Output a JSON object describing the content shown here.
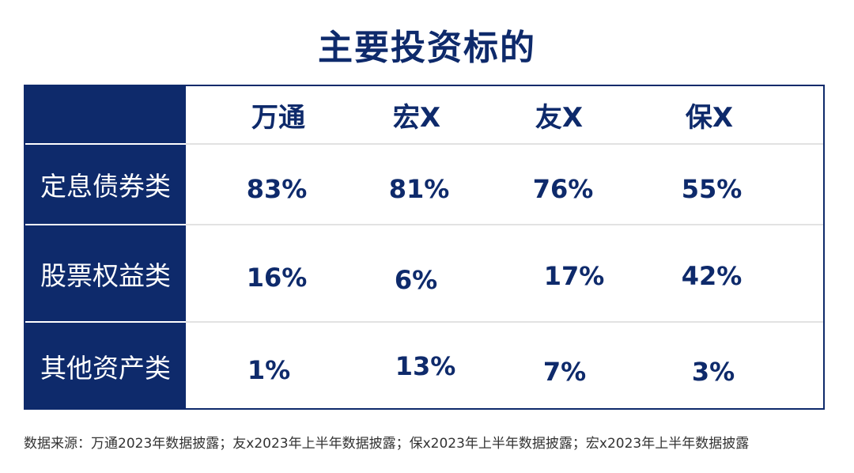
{
  "title": "主要投资标的",
  "chart_data": {
    "type": "table",
    "title": "主要投资标的",
    "columns": [
      "万通",
      "宏X",
      "友X",
      "保X"
    ],
    "rows": [
      {
        "label": "定息债券类",
        "values": [
          "83%",
          "81%",
          "76%",
          "55%"
        ]
      },
      {
        "label": "股票权益类",
        "values": [
          "16%",
          "6%",
          "17%",
          "42%"
        ]
      },
      {
        "label": "其他资产类",
        "values": [
          "1%",
          "13%",
          "7%",
          "3%"
        ]
      }
    ]
  },
  "source": "数据来源：万通2023年数据披露；友x2023年上半年数据披露；保x2023年上半年数据披露；宏x2023年上半年数据披露",
  "colors": {
    "navy": "#0e2a6b",
    "row_line": "#e2e2e2"
  }
}
